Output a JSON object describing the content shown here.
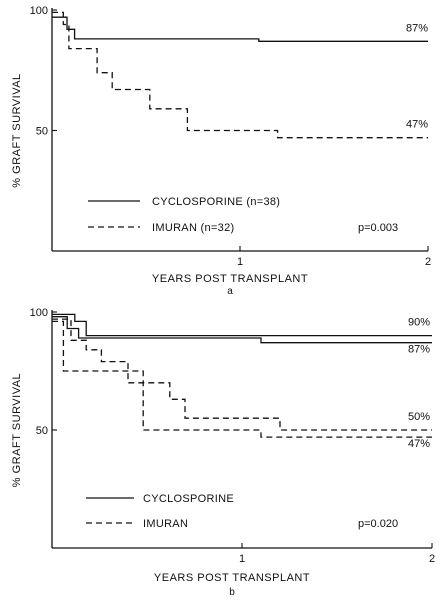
{
  "chart_data": [
    {
      "type": "line",
      "subtitle": "a",
      "xlabel": "YEARS POST TRANSPLANT",
      "ylabel": "% GRAFT SURVIVAL",
      "xlim": [
        0,
        2
      ],
      "ylim": [
        0,
        100
      ],
      "xticks": [
        "1",
        "2"
      ],
      "yticks": [
        "50",
        "100"
      ],
      "legend_placement": "bottom-left",
      "pvalue": "p=0.003",
      "series": [
        {
          "name": "CYCLOSPORINE (n=38)",
          "style": "solid",
          "end_label": "87%",
          "points": [
            [
              0,
              97
            ],
            [
              0.08,
              97
            ],
            [
              0.08,
              92
            ],
            [
              0.12,
              92
            ],
            [
              0.12,
              88
            ],
            [
              1.1,
              88
            ],
            [
              1.1,
              87
            ],
            [
              2,
              87
            ]
          ]
        },
        {
          "name": "IMURAN (n=32)",
          "style": "dashed",
          "end_label": "47%",
          "points": [
            [
              0,
              99
            ],
            [
              0.06,
              99
            ],
            [
              0.06,
              94
            ],
            [
              0.09,
              94
            ],
            [
              0.09,
              84
            ],
            [
              0.24,
              84
            ],
            [
              0.24,
              74
            ],
            [
              0.32,
              74
            ],
            [
              0.32,
              67
            ],
            [
              0.52,
              67
            ],
            [
              0.52,
              59
            ],
            [
              0.72,
              59
            ],
            [
              0.72,
              50
            ],
            [
              1.2,
              50
            ],
            [
              1.2,
              47
            ],
            [
              2,
              47
            ]
          ]
        }
      ]
    },
    {
      "type": "line",
      "subtitle": "b",
      "xlabel": "YEARS POST TRANSPLANT",
      "ylabel": "% GRAFT SURVIVAL",
      "xlim": [
        0,
        2
      ],
      "ylim": [
        0,
        100
      ],
      "xticks": [
        "1",
        "2"
      ],
      "yticks": [
        "50",
        "100"
      ],
      "legend_placement": "bottom-left",
      "pvalue": "p=0.020",
      "series": [
        {
          "name": "CYCLOSPORINE",
          "style": "solid",
          "end_label": "90%",
          "points": [
            [
              0,
              99
            ],
            [
              0.12,
              99
            ],
            [
              0.12,
              96
            ],
            [
              0.18,
              96
            ],
            [
              0.18,
              90
            ],
            [
              2,
              90
            ]
          ]
        },
        {
          "name": "CYCLOSPORINE",
          "style": "solid",
          "end_label": "87%",
          "points": [
            [
              0,
              98
            ],
            [
              0.08,
              98
            ],
            [
              0.08,
              93
            ],
            [
              0.14,
              93
            ],
            [
              0.14,
              89
            ],
            [
              1.1,
              89
            ],
            [
              1.1,
              87
            ],
            [
              2,
              87
            ]
          ]
        },
        {
          "name": "IMURAN",
          "style": "dashed",
          "end_label": "50%",
          "points": [
            [
              0,
              97
            ],
            [
              0.1,
              97
            ],
            [
              0.1,
              88
            ],
            [
              0.18,
              88
            ],
            [
              0.18,
              84
            ],
            [
              0.26,
              84
            ],
            [
              0.26,
              79
            ],
            [
              0.4,
              79
            ],
            [
              0.4,
              70
            ],
            [
              0.62,
              70
            ],
            [
              0.62,
              63
            ],
            [
              0.7,
              63
            ],
            [
              0.7,
              55
            ],
            [
              1.2,
              55
            ],
            [
              1.2,
              50
            ],
            [
              2,
              50
            ]
          ]
        },
        {
          "name": "IMURAN",
          "style": "dashed",
          "end_label": "47%",
          "points": [
            [
              0,
              96
            ],
            [
              0.06,
              96
            ],
            [
              0.06,
              75
            ],
            [
              0.48,
              75
            ],
            [
              0.48,
              50
            ],
            [
              1.1,
              50
            ],
            [
              1.1,
              47
            ],
            [
              2,
              47
            ]
          ]
        }
      ]
    }
  ]
}
